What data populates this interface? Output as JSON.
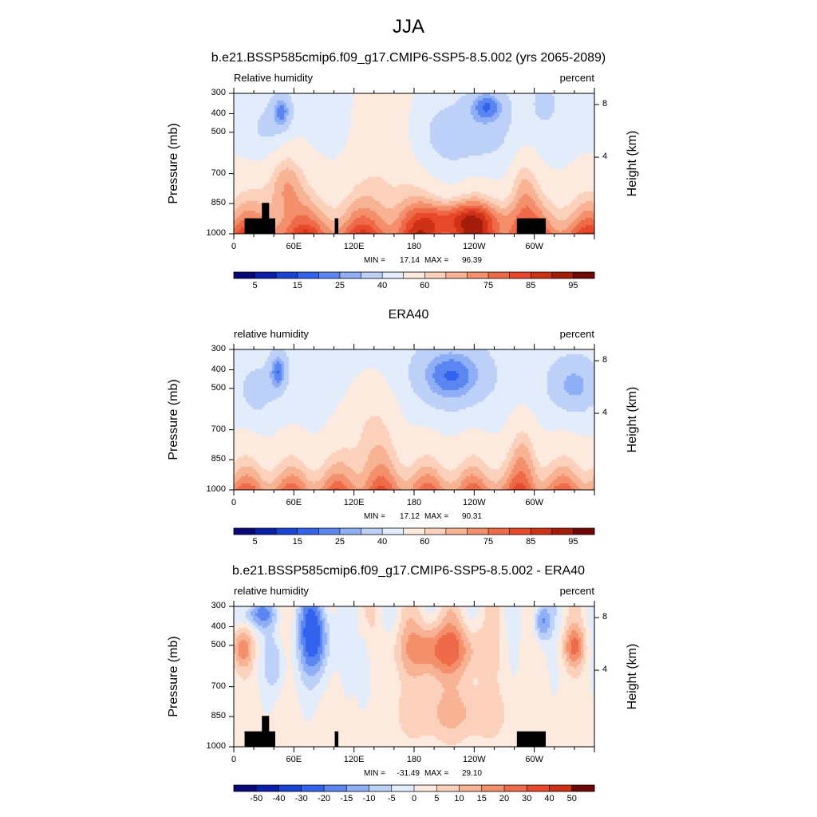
{
  "figure_title": "JJA",
  "chart_data": [
    {
      "type": "contour",
      "title": "b.e21.BSSP585cmip6.f09_g17.CMIP6-SSP5-8.5.002 (yrs 2065-2089)",
      "left_label": "Relative humidity",
      "right_label": "percent",
      "ylabel": "Pressure (mb)",
      "y2label": "Height (km)",
      "x_ticks": [
        "0",
        "60E",
        "120E",
        "180",
        "120W",
        "60W"
      ],
      "y_ticks": [
        "300",
        "400",
        "500",
        "700",
        "850",
        "1000"
      ],
      "y2_ticks": [
        "8",
        "4"
      ],
      "min_label": "MIN =",
      "min": "17.14",
      "max_label": "MAX =",
      "max": "96.39",
      "colorbar_labels": [
        "5",
        "15",
        "25",
        "40",
        "60",
        "75",
        "85",
        "95"
      ],
      "colorbar_levels": [
        5,
        10,
        15,
        20,
        25,
        30,
        40,
        50,
        60,
        65,
        70,
        75,
        80,
        85,
        90,
        95
      ],
      "colors": [
        "#08087a",
        "#0b1fa8",
        "#1a44d6",
        "#3262ee",
        "#5b86f2",
        "#8eaef5",
        "#bcd0f8",
        "#e3ecfb",
        "#fdeade",
        "#fcd1bb",
        "#f7b394",
        "#f38f6b",
        "#ee6a48",
        "#e7492a",
        "#cf3117",
        "#a41d0b",
        "#700707"
      ],
      "topography": true
    },
    {
      "type": "contour",
      "title": "ERA40",
      "left_label": "relative humidity",
      "right_label": "percent",
      "ylabel": "Pressure (mb)",
      "y2label": "Height (km)",
      "x_ticks": [
        "0",
        "60E",
        "120E",
        "180",
        "120W",
        "60W"
      ],
      "y_ticks": [
        "300",
        "400",
        "500",
        "700",
        "850",
        "1000"
      ],
      "y2_ticks": [
        "8",
        "4"
      ],
      "min_label": "MIN =",
      "min": "17.12",
      "max_label": "MAX =",
      "max": "90.31",
      "colorbar_labels": [
        "5",
        "15",
        "25",
        "40",
        "60",
        "75",
        "85",
        "95"
      ],
      "colorbar_levels": [
        5,
        10,
        15,
        20,
        25,
        30,
        40,
        50,
        60,
        65,
        70,
        75,
        80,
        85,
        90,
        95
      ],
      "colors": [
        "#08087a",
        "#0b1fa8",
        "#1a44d6",
        "#3262ee",
        "#5b86f2",
        "#8eaef5",
        "#bcd0f8",
        "#e3ecfb",
        "#fdeade",
        "#fcd1bb",
        "#f7b394",
        "#f38f6b",
        "#ee6a48",
        "#e7492a",
        "#cf3117",
        "#a41d0b",
        "#700707"
      ],
      "topography": false
    },
    {
      "type": "contour",
      "title": "b.e21.BSSP585cmip6.f09_g17.CMIP6-SSP5-8.5.002 - ERA40",
      "left_label": "relative humidity",
      "right_label": "percent",
      "ylabel": "Pressure (mb)",
      "y2label": "Height (km)",
      "x_ticks": [
        "0",
        "60E",
        "120E",
        "180",
        "120W",
        "60W"
      ],
      "y_ticks": [
        "300",
        "400",
        "500",
        "700",
        "850",
        "1000"
      ],
      "y2_ticks": [
        "8",
        "4"
      ],
      "min_label": "MIN =",
      "min": "-31.49",
      "max_label": "MAX =",
      "max": "29.10",
      "colorbar_labels": [
        "-50",
        "-40",
        "-30",
        "-20",
        "-15",
        "-10",
        "-5",
        "0",
        "5",
        "10",
        "15",
        "20",
        "30",
        "40",
        "50"
      ],
      "colorbar_levels": [
        -50,
        -40,
        -30,
        -20,
        -15,
        -10,
        -5,
        0,
        5,
        10,
        15,
        20,
        30,
        40,
        50
      ],
      "colors": [
        "#08087a",
        "#0b1fa8",
        "#1a44d6",
        "#3262ee",
        "#5b86f2",
        "#8eaef5",
        "#bcd0f8",
        "#e3ecfb",
        "#fdeade",
        "#fcd1bb",
        "#f7b394",
        "#f38f6b",
        "#ee6a48",
        "#e7492a",
        "#cf3117",
        "#700707"
      ],
      "topography": true
    }
  ]
}
